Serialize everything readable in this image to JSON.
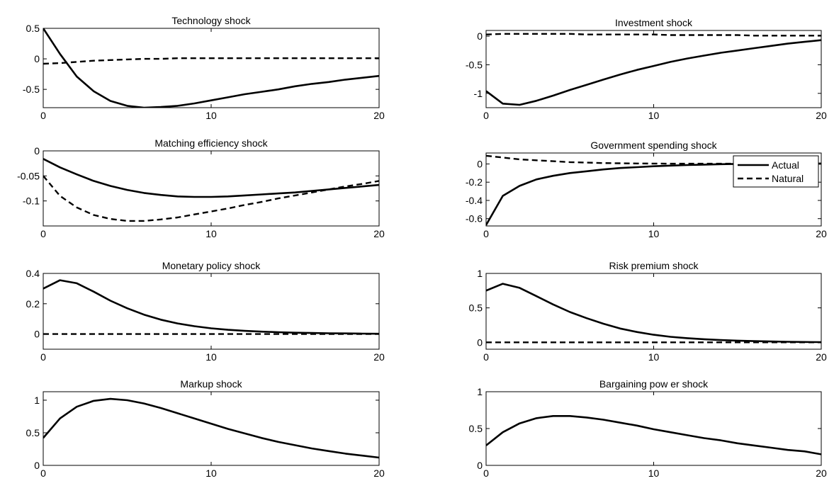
{
  "figure": {
    "legend": {
      "placement": "top-right",
      "panel_index": 3,
      "entries": [
        "Actual",
        "Natural"
      ]
    },
    "line_color": "#000000"
  },
  "chart_data": [
    {
      "type": "line",
      "title": "Technology shock",
      "x": [
        0,
        1,
        2,
        3,
        4,
        5,
        6,
        7,
        8,
        9,
        10,
        11,
        12,
        13,
        14,
        15,
        16,
        17,
        18,
        19,
        20
      ],
      "xlim": [
        0,
        20
      ],
      "ylim": [
        -0.8,
        0.5
      ],
      "xticks": [
        0,
        10,
        20
      ],
      "xtick_labels": [
        "0",
        "10",
        "20"
      ],
      "yticks": [
        -0.5,
        0,
        0.5
      ],
      "ytick_labels": [
        "-0.5",
        "0",
        "0.5"
      ],
      "grid": false,
      "series": [
        {
          "name": "Actual",
          "style": "solid",
          "values": [
            0.5,
            0.08,
            -0.29,
            -0.53,
            -0.69,
            -0.77,
            -0.8,
            -0.79,
            -0.77,
            -0.73,
            -0.68,
            -0.63,
            -0.58,
            -0.54,
            -0.5,
            -0.45,
            -0.41,
            -0.38,
            -0.34,
            -0.31,
            -0.28
          ]
        },
        {
          "name": "Natural",
          "style": "dashed",
          "values": [
            -0.08,
            -0.07,
            -0.05,
            -0.03,
            -0.02,
            -0.01,
            0,
            0,
            0.01,
            0.01,
            0.01,
            0.01,
            0.01,
            0.01,
            0.01,
            0.01,
            0.01,
            0.01,
            0.01,
            0.01,
            0.01
          ]
        }
      ]
    },
    {
      "type": "line",
      "title": "Investment shock",
      "x": [
        0,
        1,
        2,
        3,
        4,
        5,
        6,
        7,
        8,
        9,
        10,
        11,
        12,
        13,
        14,
        15,
        16,
        17,
        18,
        19,
        20
      ],
      "xlim": [
        0,
        20
      ],
      "ylim": [
        -1.25,
        0.1
      ],
      "xticks": [
        0,
        10,
        20
      ],
      "xtick_labels": [
        "0",
        "10",
        "20"
      ],
      "yticks": [
        -1,
        -0.5,
        0
      ],
      "ytick_labels": [
        "-1",
        "-0.5",
        "0"
      ],
      "grid": false,
      "series": [
        {
          "name": "Actual",
          "style": "solid",
          "values": [
            -0.96,
            -1.18,
            -1.2,
            -1.13,
            -1.04,
            -0.94,
            -0.85,
            -0.76,
            -0.67,
            -0.59,
            -0.52,
            -0.45,
            -0.39,
            -0.34,
            -0.29,
            -0.25,
            -0.21,
            -0.17,
            -0.13,
            -0.1,
            -0.07
          ]
        },
        {
          "name": "Natural",
          "style": "dashed",
          "values": [
            0.03,
            0.04,
            0.04,
            0.04,
            0.04,
            0.04,
            0.03,
            0.03,
            0.03,
            0.03,
            0.03,
            0.02,
            0.02,
            0.02,
            0.02,
            0.02,
            0.01,
            0.01,
            0.01,
            0.01,
            0.01
          ]
        }
      ]
    },
    {
      "type": "line",
      "title": "Matching efficiency shock",
      "x": [
        0,
        1,
        2,
        3,
        4,
        5,
        6,
        7,
        8,
        9,
        10,
        11,
        12,
        13,
        14,
        15,
        16,
        17,
        18,
        19,
        20
      ],
      "xlim": [
        0,
        20
      ],
      "ylim": [
        -0.15,
        0
      ],
      "xticks": [
        0,
        10,
        20
      ],
      "xtick_labels": [
        "0",
        "10",
        "20"
      ],
      "yticks": [
        -0.1,
        -0.05,
        0
      ],
      "ytick_labels": [
        "-0.1",
        "-0.05",
        "0"
      ],
      "grid": false,
      "series": [
        {
          "name": "Actual",
          "style": "solid",
          "values": [
            -0.016,
            -0.033,
            -0.047,
            -0.06,
            -0.07,
            -0.078,
            -0.084,
            -0.088,
            -0.091,
            -0.092,
            -0.092,
            -0.091,
            -0.089,
            -0.087,
            -0.085,
            -0.083,
            -0.08,
            -0.077,
            -0.074,
            -0.071,
            -0.068
          ]
        },
        {
          "name": "Natural",
          "style": "dashed",
          "values": [
            -0.05,
            -0.09,
            -0.113,
            -0.128,
            -0.136,
            -0.14,
            -0.14,
            -0.137,
            -0.133,
            -0.127,
            -0.121,
            -0.115,
            -0.108,
            -0.102,
            -0.095,
            -0.089,
            -0.083,
            -0.077,
            -0.071,
            -0.066,
            -0.06
          ]
        }
      ]
    },
    {
      "type": "line",
      "title": "Government spending shock",
      "x": [
        0,
        1,
        2,
        3,
        4,
        5,
        6,
        7,
        8,
        9,
        10,
        11,
        12,
        13,
        14,
        15,
        16,
        17,
        18,
        19,
        20
      ],
      "xlim": [
        0,
        20
      ],
      "ylim": [
        -0.68,
        0.12
      ],
      "xticks": [
        0,
        10,
        20
      ],
      "xtick_labels": [
        "0",
        "10",
        "20"
      ],
      "yticks": [
        -0.6,
        -0.4,
        -0.2,
        0
      ],
      "ytick_labels": [
        "-0.6",
        "-0.4",
        "-0.2",
        "0"
      ],
      "grid": false,
      "series": [
        {
          "name": "Actual",
          "style": "solid",
          "values": [
            -0.67,
            -0.35,
            -0.24,
            -0.17,
            -0.13,
            -0.1,
            -0.08,
            -0.06,
            -0.045,
            -0.035,
            -0.025,
            -0.018,
            -0.012,
            -0.007,
            -0.003,
            0,
            0.002,
            0.003,
            0.004,
            0.004,
            0.004
          ]
        },
        {
          "name": "Natural",
          "style": "dashed",
          "values": [
            0.09,
            0.07,
            0.05,
            0.04,
            0.03,
            0.02,
            0.015,
            0.01,
            0.007,
            0.005,
            0.004,
            0.003,
            0.003,
            0.003,
            0.003,
            0.003,
            0.003,
            0.003,
            0.003,
            0.003,
            0.003
          ]
        }
      ]
    },
    {
      "type": "line",
      "title": "Monetary policy shock",
      "x": [
        0,
        1,
        2,
        3,
        4,
        5,
        6,
        7,
        8,
        9,
        10,
        11,
        12,
        13,
        14,
        15,
        16,
        17,
        18,
        19,
        20
      ],
      "xlim": [
        0,
        20
      ],
      "ylim": [
        -0.1,
        0.4
      ],
      "xticks": [
        0,
        10,
        20
      ],
      "xtick_labels": [
        "0",
        "10",
        "20"
      ],
      "yticks": [
        0,
        0.2,
        0.4
      ],
      "ytick_labels": [
        "0",
        "0.2",
        "0.4"
      ],
      "grid": false,
      "series": [
        {
          "name": "Actual",
          "style": "solid",
          "values": [
            0.3,
            0.355,
            0.335,
            0.28,
            0.22,
            0.17,
            0.128,
            0.095,
            0.07,
            0.052,
            0.038,
            0.028,
            0.021,
            0.016,
            0.012,
            0.009,
            0.007,
            0.005,
            0.004,
            0.003,
            0.002
          ]
        },
        {
          "name": "Natural",
          "style": "dashed",
          "values": [
            0,
            0,
            0,
            0,
            0,
            0,
            0,
            0,
            0,
            0,
            0,
            0,
            0,
            0,
            0,
            0,
            0,
            0,
            0,
            0,
            0
          ]
        }
      ]
    },
    {
      "type": "line",
      "title": "Risk premium shock",
      "x": [
        0,
        1,
        2,
        3,
        4,
        5,
        6,
        7,
        8,
        9,
        10,
        11,
        12,
        13,
        14,
        15,
        16,
        17,
        18,
        19,
        20
      ],
      "xlim": [
        0,
        20
      ],
      "ylim": [
        -0.1,
        1
      ],
      "xticks": [
        0,
        10,
        20
      ],
      "xtick_labels": [
        "0",
        "10",
        "20"
      ],
      "yticks": [
        0,
        0.5,
        1
      ],
      "ytick_labels": [
        "0",
        "0.5",
        "1"
      ],
      "grid": false,
      "series": [
        {
          "name": "Actual",
          "style": "solid",
          "values": [
            0.75,
            0.85,
            0.79,
            0.67,
            0.55,
            0.44,
            0.35,
            0.27,
            0.2,
            0.15,
            0.11,
            0.08,
            0.06,
            0.045,
            0.033,
            0.024,
            0.017,
            0.012,
            0.008,
            0.005,
            0.003
          ]
        },
        {
          "name": "Natural",
          "style": "dashed",
          "values": [
            0,
            0,
            0,
            0,
            0,
            0,
            0,
            0,
            0,
            0,
            0,
            0,
            0,
            0,
            0,
            0,
            0,
            0,
            0,
            0,
            0
          ]
        }
      ]
    },
    {
      "type": "line",
      "title": "Markup shock",
      "x": [
        0,
        1,
        2,
        3,
        4,
        5,
        6,
        7,
        8,
        9,
        10,
        11,
        12,
        13,
        14,
        15,
        16,
        17,
        18,
        19,
        20
      ],
      "xlim": [
        0,
        20
      ],
      "ylim": [
        0,
        1.13
      ],
      "xticks": [
        0,
        10,
        20
      ],
      "xtick_labels": [
        "0",
        "10",
        "20"
      ],
      "yticks": [
        0,
        0.5,
        1
      ],
      "ytick_labels": [
        "0",
        "0.5",
        "1"
      ],
      "grid": false,
      "series": [
        {
          "name": "Actual",
          "style": "solid",
          "values": [
            0.42,
            0.72,
            0.9,
            0.99,
            1.02,
            1.0,
            0.95,
            0.88,
            0.8,
            0.72,
            0.64,
            0.56,
            0.49,
            0.42,
            0.36,
            0.31,
            0.26,
            0.22,
            0.18,
            0.15,
            0.12
          ]
        }
      ]
    },
    {
      "type": "line",
      "title": "Bargaining pow er shock",
      "x": [
        0,
        1,
        2,
        3,
        4,
        5,
        6,
        7,
        8,
        9,
        10,
        11,
        12,
        13,
        14,
        15,
        16,
        17,
        18,
        19,
        20
      ],
      "xlim": [
        0,
        20
      ],
      "ylim": [
        0,
        1
      ],
      "xticks": [
        0,
        10,
        20
      ],
      "xtick_labels": [
        "0",
        "10",
        "20"
      ],
      "yticks": [
        0,
        0.5,
        1
      ],
      "ytick_labels": [
        "0",
        "0.5",
        "1"
      ],
      "grid": false,
      "series": [
        {
          "name": "Actual",
          "style": "solid",
          "values": [
            0.27,
            0.45,
            0.57,
            0.64,
            0.67,
            0.67,
            0.65,
            0.62,
            0.58,
            0.54,
            0.49,
            0.45,
            0.41,
            0.37,
            0.34,
            0.3,
            0.27,
            0.24,
            0.21,
            0.19,
            0.15
          ]
        }
      ]
    }
  ]
}
